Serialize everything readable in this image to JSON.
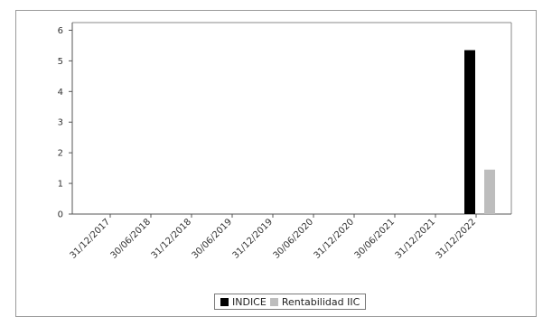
{
  "chart_data": {
    "type": "bar",
    "categories": [
      "31/12/2017",
      "30/06/2018",
      "31/12/2018",
      "30/06/2019",
      "31/12/2019",
      "30/06/2020",
      "31/12/2020",
      "30/06/2021",
      "31/12/2021",
      "31/12/2022"
    ],
    "series": [
      {
        "name": "INDICE",
        "color": "#000000",
        "values": [
          null,
          null,
          null,
          null,
          null,
          null,
          null,
          null,
          null,
          5.35
        ]
      },
      {
        "name": "Rentabilidad IIC",
        "color": "#bdbdbd",
        "values": [
          null,
          null,
          null,
          null,
          null,
          null,
          null,
          null,
          null,
          1.45
        ]
      }
    ],
    "yticks": [
      0,
      1,
      2,
      3,
      4,
      5,
      6
    ],
    "ylim": [
      0,
      6.25
    ],
    "grid": false,
    "legend": "bottom"
  }
}
